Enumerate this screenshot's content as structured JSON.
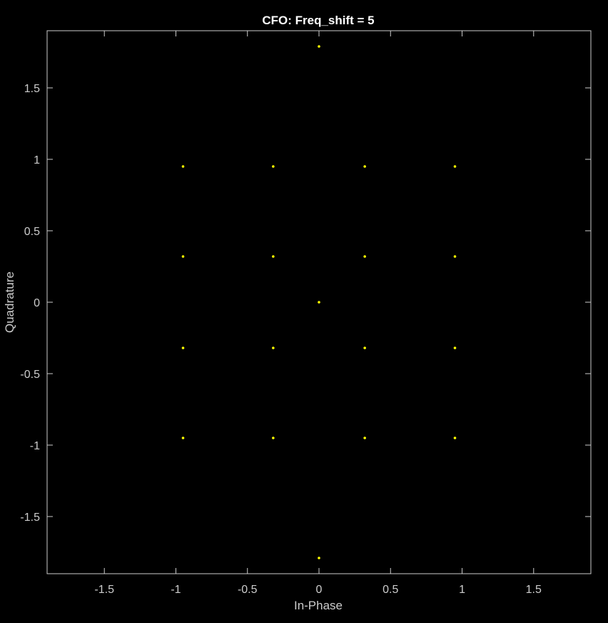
{
  "chart_data": {
    "type": "scatter",
    "title": "CFO: Freq_shift = 5",
    "xlabel": "In-Phase",
    "ylabel": "Quadrature",
    "xlim": [
      -1.9,
      1.9
    ],
    "ylim": [
      -1.9,
      1.9
    ],
    "xticks": [
      -1.5,
      -1,
      -0.5,
      0,
      0.5,
      1,
      1.5
    ],
    "yticks": [
      -1.5,
      -1,
      -0.5,
      0,
      0.5,
      1,
      1.5
    ],
    "xtick_labels": [
      "-1.5",
      "-1",
      "-0.5",
      "0",
      "0.5",
      "1",
      "1.5"
    ],
    "ytick_labels": [
      "-1.5",
      "-1",
      "-0.5",
      "0",
      "0.5",
      "1",
      "1.5"
    ],
    "grid": false,
    "colors": {
      "background": "#000000",
      "axes": "#cccccc",
      "marker": "#ffff00",
      "title": "#ffffff"
    },
    "series": [
      {
        "points": [
          [
            0,
            1.79
          ],
          [
            -0.95,
            0.95
          ],
          [
            -0.32,
            0.95
          ],
          [
            0.32,
            0.95
          ],
          [
            0.95,
            0.95
          ],
          [
            -0.95,
            0.32
          ],
          [
            -0.32,
            0.32
          ],
          [
            0.32,
            0.32
          ],
          [
            0.95,
            0.32
          ],
          [
            0,
            0
          ],
          [
            -0.95,
            -0.32
          ],
          [
            -0.32,
            -0.32
          ],
          [
            0.32,
            -0.32
          ],
          [
            0.95,
            -0.32
          ],
          [
            -0.95,
            -0.95
          ],
          [
            -0.32,
            -0.95
          ],
          [
            0.32,
            -0.95
          ],
          [
            0.95,
            -0.95
          ],
          [
            0,
            -1.79
          ]
        ]
      }
    ]
  }
}
